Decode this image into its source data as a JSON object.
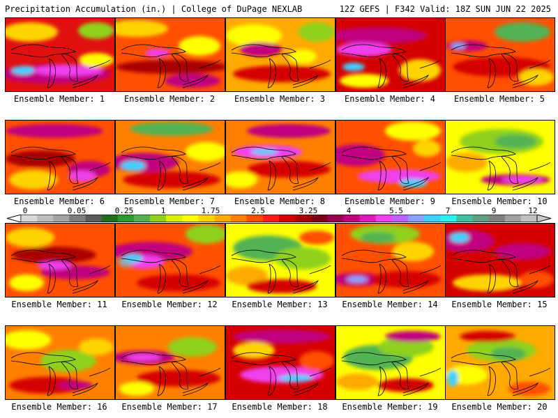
{
  "header": {
    "left": "Precipitation Accumulation (in.) | College of DuPage NEXLAB",
    "right": "12Z GEFS | F342 Valid: 18Z SUN JUN 22 2025"
  },
  "colorbar": {
    "labels": [
      "0",
      "0.05",
      "0.25",
      "1",
      "1.75",
      "2.5",
      "3.25",
      "4",
      "5.5",
      "7",
      "9",
      "12"
    ],
    "colors": [
      "#d9d9d9",
      "#bdbdbd",
      "#a3a3a3",
      "#7d7d7d",
      "#5a5a5a",
      "#1e6e1e",
      "#2f9a2f",
      "#53b253",
      "#8fd11c",
      "#d8f000",
      "#ffff00",
      "#ffd400",
      "#ffaa00",
      "#ff8000",
      "#ff5000",
      "#ff1e1e",
      "#d40000",
      "#a80000",
      "#7c0014",
      "#9a0050",
      "#c0007e",
      "#e01ab8",
      "#f040ee",
      "#c060ff",
      "#8aa0ff",
      "#40d0ff",
      "#2ef0f0",
      "#40c0a0",
      "#60a080",
      "#808080",
      "#a0a0a0",
      "#c0c0c0"
    ]
  },
  "panels": [
    {
      "label": "Ensemble Member: 1",
      "base": "#e01010",
      "blobs": [
        [
          "#ffd400",
          35,
          20,
          40,
          14
        ],
        [
          "#8fd11c",
          130,
          18,
          26,
          12
        ],
        [
          "#c0007e",
          70,
          80,
          80,
          14
        ],
        [
          "#f040ee",
          90,
          75,
          50,
          8
        ],
        [
          "#40d0ff",
          25,
          75,
          16,
          6
        ],
        [
          "#ffff00",
          130,
          60,
          25,
          10
        ]
      ]
    },
    {
      "label": "Ensemble Member: 2",
      "base": "#ff5000",
      "blobs": [
        [
          "#ffd400",
          30,
          15,
          45,
          12
        ],
        [
          "#a80000",
          80,
          70,
          80,
          10
        ],
        [
          "#c0007e",
          110,
          90,
          40,
          10
        ],
        [
          "#ffff00",
          120,
          40,
          30,
          14
        ],
        [
          "#f040ee",
          60,
          50,
          18,
          6
        ]
      ]
    },
    {
      "label": "Ensemble Member: 3",
      "base": "#ffaa00",
      "blobs": [
        [
          "#ffff00",
          40,
          25,
          40,
          16
        ],
        [
          "#8fd11c",
          130,
          20,
          26,
          14
        ],
        [
          "#c0007e",
          50,
          45,
          30,
          10
        ],
        [
          "#d40000",
          80,
          80,
          70,
          12
        ],
        [
          "#ffff00",
          110,
          55,
          20,
          10
        ]
      ]
    },
    {
      "label": "Ensemble Member: 4",
      "base": "#d40000",
      "blobs": [
        [
          "#c0007e",
          60,
          25,
          70,
          12
        ],
        [
          "#f040ee",
          40,
          45,
          40,
          10
        ],
        [
          "#40d0ff",
          25,
          70,
          16,
          6
        ],
        [
          "#ffd400",
          120,
          75,
          30,
          16
        ],
        [
          "#ffff00",
          40,
          90,
          35,
          10
        ]
      ]
    },
    {
      "label": "Ensemble Member: 5",
      "base": "#ff5000",
      "blobs": [
        [
          "#53b253",
          110,
          20,
          40,
          14
        ],
        [
          "#c0007e",
          30,
          40,
          30,
          8
        ],
        [
          "#8aa0ff",
          18,
          40,
          10,
          5
        ],
        [
          "#d40000",
          80,
          70,
          70,
          14
        ],
        [
          "#ffd400",
          130,
          85,
          25,
          12
        ]
      ]
    },
    {
      "label": "Ensemble Member: 6",
      "base": "#ff5000",
      "blobs": [
        [
          "#c0007e",
          70,
          15,
          70,
          10
        ],
        [
          "#a80000",
          50,
          55,
          50,
          12
        ],
        [
          "#c0007e",
          120,
          70,
          30,
          12
        ],
        [
          "#ffd400",
          40,
          85,
          35,
          14
        ],
        [
          "#f040ee",
          110,
          80,
          20,
          8
        ]
      ]
    },
    {
      "label": "Ensemble Member: 7",
      "base": "#ff8000",
      "blobs": [
        [
          "#53b253",
          80,
          12,
          60,
          10
        ],
        [
          "#ffff00",
          130,
          45,
          30,
          14
        ],
        [
          "#c0007e",
          40,
          60,
          50,
          14
        ],
        [
          "#40d0ff",
          25,
          65,
          18,
          7
        ],
        [
          "#d40000",
          80,
          85,
          70,
          12
        ]
      ]
    },
    {
      "label": "Ensemble Member: 8",
      "base": "#ff8000",
      "blobs": [
        [
          "#c0007e",
          90,
          15,
          60,
          10
        ],
        [
          "#f040ee",
          60,
          45,
          50,
          10
        ],
        [
          "#40d0ff",
          55,
          45,
          20,
          4
        ],
        [
          "#d40000",
          90,
          70,
          60,
          12
        ],
        [
          "#ffff00",
          20,
          85,
          25,
          12
        ]
      ]
    },
    {
      "label": "Ensemble Member: 9",
      "base": "#ff5000",
      "blobs": [
        [
          "#ffff00",
          110,
          15,
          40,
          14
        ],
        [
          "#c0007e",
          30,
          50,
          40,
          16
        ],
        [
          "#f040ee",
          90,
          80,
          60,
          10
        ],
        [
          "#40d0ff",
          110,
          90,
          20,
          6
        ],
        [
          "#ffd400",
          130,
          40,
          20,
          12
        ]
      ]
    },
    {
      "label": "Ensemble Member: 10",
      "base": "#ffff00",
      "blobs": [
        [
          "#8fd11c",
          80,
          30,
          60,
          18
        ],
        [
          "#53b253",
          100,
          30,
          30,
          10
        ],
        [
          "#ffaa00",
          30,
          60,
          30,
          14
        ],
        [
          "#c0007e",
          100,
          85,
          50,
          8
        ],
        [
          "#f040ee",
          110,
          85,
          30,
          5
        ]
      ]
    },
    {
      "label": "Ensemble Member: 11",
      "base": "#ff5000",
      "blobs": [
        [
          "#ffd400",
          35,
          20,
          35,
          14
        ],
        [
          "#a80000",
          70,
          45,
          60,
          12
        ],
        [
          "#c0007e",
          100,
          70,
          50,
          10
        ],
        [
          "#f040ee",
          70,
          60,
          25,
          6
        ],
        [
          "#ffff00",
          30,
          85,
          25,
          12
        ]
      ]
    },
    {
      "label": "Ensemble Member: 12",
      "base": "#ff5000",
      "blobs": [
        [
          "#8fd11c",
          130,
          15,
          30,
          14
        ],
        [
          "#c0007e",
          50,
          40,
          60,
          14
        ],
        [
          "#f040ee",
          40,
          55,
          30,
          10
        ],
        [
          "#a0a0a0",
          15,
          55,
          12,
          8
        ],
        [
          "#40d0ff",
          25,
          50,
          14,
          6
        ],
        [
          "#d40000",
          90,
          85,
          60,
          12
        ]
      ]
    },
    {
      "label": "Ensemble Member: 13",
      "base": "#ffff00",
      "blobs": [
        [
          "#53b253",
          60,
          35,
          50,
          18
        ],
        [
          "#8fd11c",
          110,
          50,
          40,
          16
        ],
        [
          "#ffaa00",
          30,
          75,
          30,
          14
        ],
        [
          "#d40000",
          80,
          90,
          50,
          10
        ],
        [
          "#ff5000",
          130,
          20,
          25,
          10
        ]
      ]
    },
    {
      "label": "Ensemble Member: 14",
      "base": "#ff5000",
      "blobs": [
        [
          "#8fd11c",
          70,
          15,
          50,
          14
        ],
        [
          "#53b253",
          60,
          20,
          25,
          8
        ],
        [
          "#c0007e",
          30,
          80,
          35,
          10
        ],
        [
          "#8aa0ff",
          30,
          80,
          15,
          5
        ],
        [
          "#ffd400",
          110,
          40,
          30,
          14
        ],
        [
          "#d40000",
          100,
          80,
          50,
          12
        ]
      ]
    },
    {
      "label": "Ensemble Member: 15",
      "base": "#d40000",
      "blobs": [
        [
          "#c0007e",
          30,
          25,
          40,
          16
        ],
        [
          "#40d0ff",
          20,
          20,
          14,
          7
        ],
        [
          "#c0007e",
          110,
          40,
          40,
          12
        ],
        [
          "#ffd400",
          60,
          85,
          50,
          12
        ],
        [
          "#ff5000",
          130,
          80,
          25,
          12
        ]
      ]
    },
    {
      "label": "Ensemble Member: 16",
      "base": "#ff8000",
      "blobs": [
        [
          "#ffff00",
          30,
          20,
          35,
          14
        ],
        [
          "#8fd11c",
          90,
          50,
          40,
          16
        ],
        [
          "#d40000",
          60,
          85,
          55,
          12
        ],
        [
          "#c0007e",
          100,
          85,
          25,
          6
        ],
        [
          "#ffd400",
          130,
          30,
          25,
          12
        ]
      ]
    },
    {
      "label": "Ensemble Member: 17",
      "base": "#ff8000",
      "blobs": [
        [
          "#c0007e",
          40,
          45,
          45,
          10
        ],
        [
          "#f040ee",
          40,
          45,
          25,
          5
        ],
        [
          "#8fd11c",
          110,
          30,
          35,
          14
        ],
        [
          "#d40000",
          90,
          75,
          60,
          12
        ],
        [
          "#ffff00",
          30,
          90,
          25,
          10
        ]
      ]
    },
    {
      "label": "Ensemble Member: 18",
      "base": "#d40000",
      "blobs": [
        [
          "#c0007e",
          80,
          15,
          70,
          10
        ],
        [
          "#ffd400",
          40,
          35,
          30,
          12
        ],
        [
          "#f040ee",
          80,
          70,
          60,
          12
        ],
        [
          "#40d0ff",
          100,
          75,
          25,
          5
        ],
        [
          "#ff5000",
          130,
          50,
          25,
          14
        ]
      ]
    },
    {
      "label": "Ensemble Member: 19",
      "base": "#ffff00",
      "blobs": [
        [
          "#53b253",
          60,
          45,
          50,
          18
        ],
        [
          "#8fd11c",
          100,
          30,
          40,
          14
        ],
        [
          "#c0007e",
          110,
          15,
          40,
          8
        ],
        [
          "#ffaa00",
          30,
          80,
          30,
          12
        ],
        [
          "#d40000",
          100,
          85,
          40,
          10
        ]
      ]
    },
    {
      "label": "Ensemble Member: 20",
      "base": "#ffaa00",
      "blobs": [
        [
          "#8fd11c",
          80,
          35,
          50,
          16
        ],
        [
          "#53b253",
          90,
          40,
          25,
          10
        ],
        [
          "#ffff00",
          30,
          70,
          30,
          14
        ],
        [
          "#40d0ff",
          10,
          75,
          8,
          12
        ],
        [
          "#d40000",
          60,
          15,
          40,
          8
        ],
        [
          "#ff5000",
          120,
          90,
          30,
          10
        ]
      ]
    }
  ]
}
